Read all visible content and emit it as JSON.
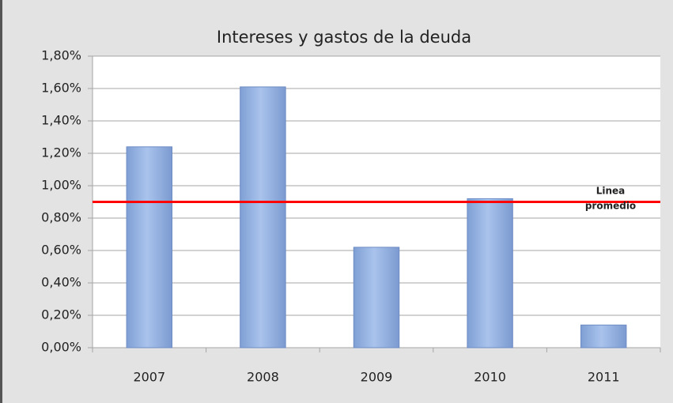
{
  "chart_data": {
    "type": "bar",
    "title": "Intereses y gastos de la deuda",
    "categories": [
      "2007",
      "2008",
      "2009",
      "2010",
      "2011"
    ],
    "values": [
      1.24,
      1.61,
      0.62,
      0.92,
      0.14
    ],
    "color": "#95b3e3",
    "ylim": [
      0,
      1.8
    ],
    "yticks": [
      {
        "value": 0,
        "label": "0,00%"
      },
      {
        "value": 0.2,
        "label": "0,20%"
      },
      {
        "value": 0.4,
        "label": "0,40%"
      },
      {
        "value": 0.6,
        "label": "0,60%"
      },
      {
        "value": 0.8,
        "label": "0,80%"
      },
      {
        "value": 1.0,
        "label": "1,00%"
      },
      {
        "value": 1.2,
        "label": "1,20%"
      },
      {
        "value": 1.4,
        "label": "1,40%"
      },
      {
        "value": 1.6,
        "label": "1,60%"
      },
      {
        "value": 1.8,
        "label": "1,80%"
      }
    ],
    "grid": true,
    "average_line": {
      "value": 0.9,
      "color": "#ff0000",
      "label": "Linea promedio"
    }
  }
}
